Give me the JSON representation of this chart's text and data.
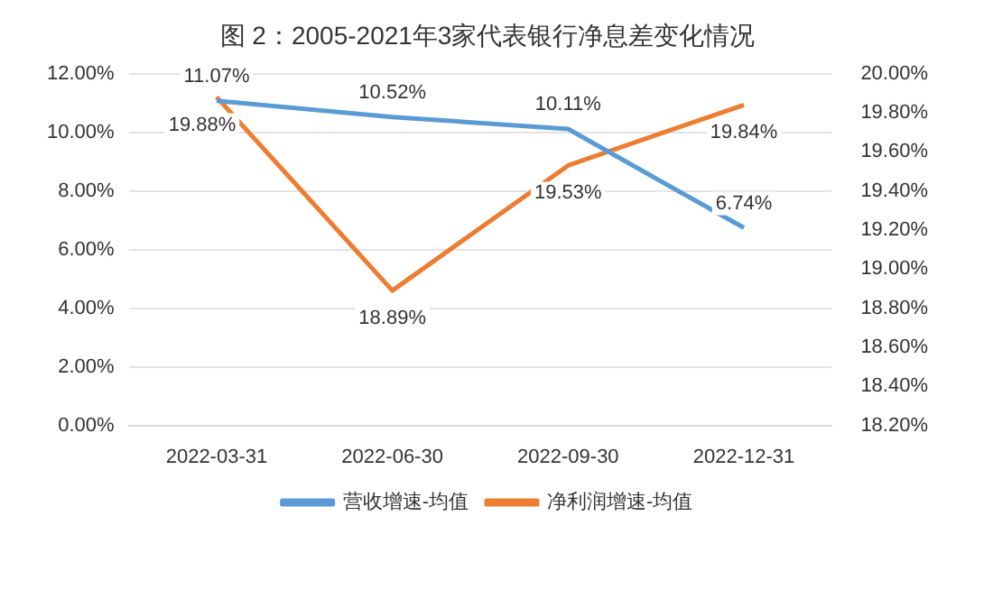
{
  "chart_data": {
    "type": "line",
    "title": "图 2：2005-2021年3家代表银行净息差变化情况",
    "categories": [
      "2022-03-31",
      "2022-06-30",
      "2022-09-30",
      "2022-12-31"
    ],
    "series": [
      {
        "name": "营收增速-均值",
        "color": "#5b9bd5",
        "values": [
          11.07,
          10.52,
          10.11,
          6.74
        ],
        "value_labels": [
          "11.07%",
          "10.52%",
          "10.11%",
          "6.74%"
        ]
      },
      {
        "name": "净利润增速-均值",
        "color": "#ed7d31",
        "axis": "y2",
        "values": [
          19.88,
          18.89,
          19.53,
          19.84
        ],
        "value_labels": [
          "19.88%",
          "18.89%",
          "19.53%",
          "19.84%"
        ]
      }
    ],
    "ylim": [
      0,
      12
    ],
    "yticks": [
      {
        "value": 0,
        "label": "0.00%"
      },
      {
        "value": 2,
        "label": "2.00%"
      },
      {
        "value": 4,
        "label": "4.00%"
      },
      {
        "value": 6,
        "label": "6.00%"
      },
      {
        "value": 8,
        "label": "8.00%"
      },
      {
        "value": 10,
        "label": "10.00%"
      },
      {
        "value": 12,
        "label": "12.00%"
      }
    ],
    "y2lim": [
      18.2,
      20
    ],
    "y2ticks": [
      {
        "value": 18.2,
        "label": "18.20%"
      },
      {
        "value": 18.4,
        "label": "18.40%"
      },
      {
        "value": 18.6,
        "label": "18.60%"
      },
      {
        "value": 18.8,
        "label": "18.80%"
      },
      {
        "value": 19,
        "label": "19.00%"
      },
      {
        "value": 19.2,
        "label": "19.20%"
      },
      {
        "value": 19.4,
        "label": "19.40%"
      },
      {
        "value": 19.6,
        "label": "19.60%"
      },
      {
        "value": 19.8,
        "label": "19.80%"
      },
      {
        "value": 20,
        "label": "20.00%"
      }
    ],
    "grid": "y",
    "legend": "bottom",
    "marker": "none",
    "line_style": "solid"
  }
}
